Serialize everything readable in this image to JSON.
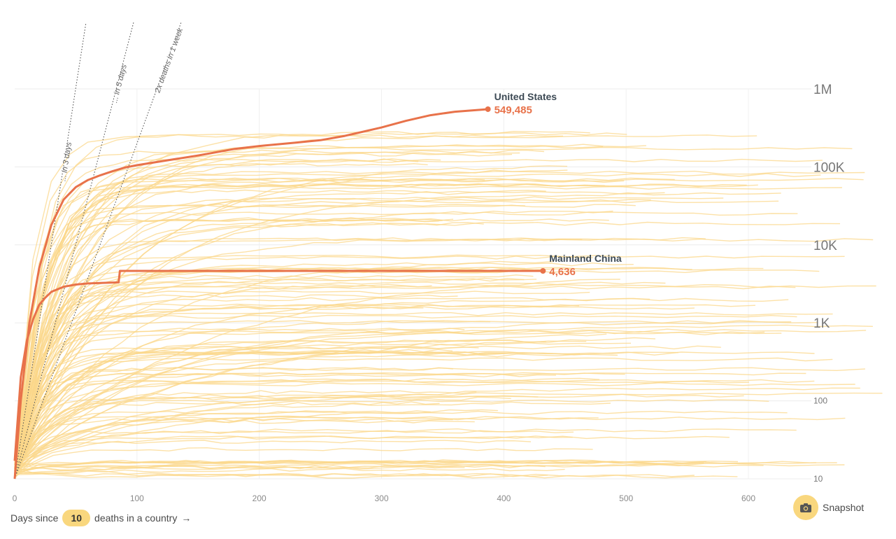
{
  "chart_data": {
    "type": "line",
    "y_scale": "log",
    "ylim": [
      10,
      1000000
    ],
    "xlim": [
      0,
      650
    ],
    "x_ticks": [
      0,
      100,
      200,
      300,
      400,
      500,
      600
    ],
    "y_ticks": [
      {
        "value": 10,
        "label": "10"
      },
      {
        "value": 100,
        "label": "100"
      },
      {
        "value": 1000,
        "label": "1K"
      },
      {
        "value": 10000,
        "label": "10K"
      },
      {
        "value": 100000,
        "label": "100K"
      },
      {
        "value": 1000000,
        "label": "1M"
      }
    ],
    "grid": true,
    "x_caption": {
      "prefix": "Days since",
      "value": "10",
      "suffix": "deaths in a country",
      "arrow": "→"
    },
    "reference_lines": [
      {
        "label": "... in 3 days",
        "doubling_days": 3
      },
      {
        "label": "... in 5 days",
        "doubling_days": 5
      },
      {
        "label": "2x deaths in 1 week",
        "doubling_days": 7
      }
    ],
    "highlight_series": [
      {
        "name": "United States",
        "value_label": "549,485",
        "color": "#e8724a",
        "points": [
          [
            0,
            10
          ],
          [
            5,
            100
          ],
          [
            12,
            1000
          ],
          [
            20,
            5000
          ],
          [
            30,
            18000
          ],
          [
            40,
            38000
          ],
          [
            50,
            55000
          ],
          [
            60,
            68000
          ],
          [
            70,
            78000
          ],
          [
            80,
            88000
          ],
          [
            90,
            98000
          ],
          [
            100,
            105000
          ],
          [
            120,
            118000
          ],
          [
            150,
            140000
          ],
          [
            180,
            170000
          ],
          [
            200,
            185000
          ],
          [
            230,
            205000
          ],
          [
            250,
            220000
          ],
          [
            270,
            250000
          ],
          [
            300,
            320000
          ],
          [
            320,
            390000
          ],
          [
            340,
            460000
          ],
          [
            360,
            510000
          ],
          [
            387,
            549485
          ]
        ]
      },
      {
        "name": "Mainland China",
        "value_label": "4,636",
        "color": "#e8724a",
        "points": [
          [
            0,
            17
          ],
          [
            5,
            200
          ],
          [
            10,
            600
          ],
          [
            15,
            1100
          ],
          [
            20,
            1700
          ],
          [
            25,
            2100
          ],
          [
            30,
            2500
          ],
          [
            40,
            2900
          ],
          [
            50,
            3100
          ],
          [
            60,
            3200
          ],
          [
            70,
            3250
          ],
          [
            85,
            3300
          ],
          [
            86,
            4636
          ],
          [
            100,
            4636
          ],
          [
            200,
            4636
          ],
          [
            300,
            4636
          ],
          [
            400,
            4636
          ],
          [
            432,
            4636
          ]
        ]
      }
    ]
  },
  "snapshot": {
    "label": "Snapshot",
    "icon": "camera-icon"
  },
  "colors": {
    "accent": "#e8724a",
    "background_lines": "#fbd78a",
    "pill": "#f9d77e"
  }
}
